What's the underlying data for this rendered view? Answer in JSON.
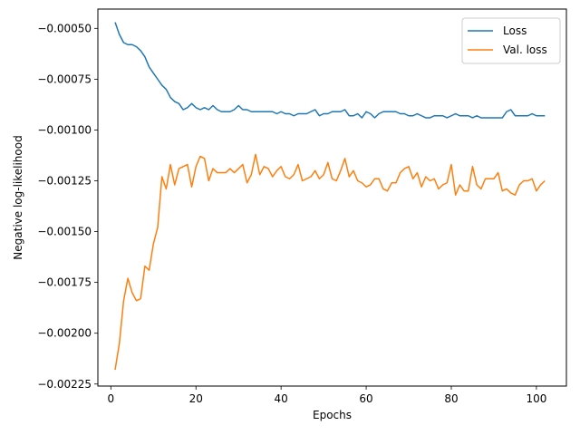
{
  "chart_data": {
    "type": "line",
    "title": "",
    "xlabel": "Epochs",
    "ylabel": "Negative log-likelihood",
    "xlim": [
      -3.05,
      107.05
    ],
    "ylim": [
      -0.00226,
      -0.000405
    ],
    "x_ticks": [
      0,
      20,
      40,
      60,
      80,
      100
    ],
    "x_tick_labels": [
      "0",
      "20",
      "40",
      "60",
      "80",
      "100"
    ],
    "y_ticks": [
      -0.0005,
      -0.00075,
      -0.001,
      -0.00125,
      -0.0015,
      -0.00175,
      -0.002,
      -0.00225
    ],
    "y_tick_labels": [
      "−0.00050",
      "−0.00075",
      "−0.00100",
      "−0.00125",
      "−0.00150",
      "−0.00175",
      "−0.00200",
      "−0.00225"
    ],
    "grid": false,
    "legend_position": "top-right",
    "x": [
      1,
      2,
      3,
      4,
      5,
      6,
      7,
      8,
      9,
      10,
      11,
      12,
      13,
      14,
      15,
      16,
      17,
      18,
      19,
      20,
      21,
      22,
      23,
      24,
      25,
      26,
      27,
      28,
      29,
      30,
      31,
      32,
      33,
      34,
      35,
      36,
      37,
      38,
      39,
      40,
      41,
      42,
      43,
      44,
      45,
      46,
      47,
      48,
      49,
      50,
      51,
      52,
      53,
      54,
      55,
      56,
      57,
      58,
      59,
      60,
      61,
      62,
      63,
      64,
      65,
      66,
      67,
      68,
      69,
      70,
      71,
      72,
      73,
      74,
      75,
      76,
      77,
      78,
      79,
      80,
      81,
      82,
      83,
      84,
      85,
      86,
      87,
      88,
      89,
      90,
      91,
      92,
      93,
      94,
      95,
      96,
      97,
      98,
      99,
      100,
      101,
      102
    ],
    "series": [
      {
        "name": "Loss",
        "color": "#1f77b4",
        "values": [
          -0.00047,
          -0.00053,
          -0.00057,
          -0.00058,
          -0.00058,
          -0.00059,
          -0.00061,
          -0.00064,
          -0.00069,
          -0.00072,
          -0.00075,
          -0.00078,
          -0.0008,
          -0.00084,
          -0.00086,
          -0.00087,
          -0.0009,
          -0.00089,
          -0.00087,
          -0.00089,
          -0.0009,
          -0.00089,
          -0.0009,
          -0.00088,
          -0.0009,
          -0.00091,
          -0.00091,
          -0.00091,
          -0.0009,
          -0.00088,
          -0.0009,
          -0.0009,
          -0.00091,
          -0.00091,
          -0.00091,
          -0.00091,
          -0.00091,
          -0.00091,
          -0.00092,
          -0.00091,
          -0.00092,
          -0.00092,
          -0.00093,
          -0.00092,
          -0.00092,
          -0.00092,
          -0.00091,
          -0.0009,
          -0.00093,
          -0.00092,
          -0.00092,
          -0.00091,
          -0.00091,
          -0.00091,
          -0.0009,
          -0.00093,
          -0.00093,
          -0.00092,
          -0.00094,
          -0.00091,
          -0.00092,
          -0.00094,
          -0.00092,
          -0.00091,
          -0.00091,
          -0.00091,
          -0.00091,
          -0.00092,
          -0.00092,
          -0.00093,
          -0.00093,
          -0.00092,
          -0.00093,
          -0.00094,
          -0.00094,
          -0.00093,
          -0.00093,
          -0.00093,
          -0.00094,
          -0.00093,
          -0.00092,
          -0.00093,
          -0.00093,
          -0.00093,
          -0.00094,
          -0.00093,
          -0.00094,
          -0.00094,
          -0.00094,
          -0.00094,
          -0.00094,
          -0.00094,
          -0.00091,
          -0.0009,
          -0.00093,
          -0.00093,
          -0.00093,
          -0.00093,
          -0.00092,
          -0.00093,
          -0.00093,
          -0.00093
        ]
      },
      {
        "name": "Val. loss",
        "color": "#ff7f0e",
        "values": [
          -0.00218,
          -0.00205,
          -0.00184,
          -0.00173,
          -0.0018,
          -0.00184,
          -0.00183,
          -0.00167,
          -0.00169,
          -0.00156,
          -0.00148,
          -0.00123,
          -0.00129,
          -0.00117,
          -0.00127,
          -0.00119,
          -0.00118,
          -0.00117,
          -0.00128,
          -0.00118,
          -0.00113,
          -0.00114,
          -0.00125,
          -0.00119,
          -0.00121,
          -0.00121,
          -0.00121,
          -0.00119,
          -0.00121,
          -0.00119,
          -0.00117,
          -0.00126,
          -0.00122,
          -0.00112,
          -0.00122,
          -0.00118,
          -0.00119,
          -0.00123,
          -0.0012,
          -0.00118,
          -0.00123,
          -0.00124,
          -0.00122,
          -0.00117,
          -0.00125,
          -0.00124,
          -0.00123,
          -0.0012,
          -0.00124,
          -0.00122,
          -0.00116,
          -0.00124,
          -0.00125,
          -0.0012,
          -0.00114,
          -0.00123,
          -0.0012,
          -0.00125,
          -0.00126,
          -0.00128,
          -0.00127,
          -0.00124,
          -0.00124,
          -0.00129,
          -0.0013,
          -0.00126,
          -0.00126,
          -0.00121,
          -0.00119,
          -0.00118,
          -0.00124,
          -0.00121,
          -0.00128,
          -0.00123,
          -0.00125,
          -0.00124,
          -0.00129,
          -0.00127,
          -0.00126,
          -0.00117,
          -0.00132,
          -0.00127,
          -0.0013,
          -0.0013,
          -0.00118,
          -0.00127,
          -0.00129,
          -0.00124,
          -0.00124,
          -0.00124,
          -0.00121,
          -0.0013,
          -0.00129,
          -0.00131,
          -0.00132,
          -0.00127,
          -0.00125,
          -0.00125,
          -0.00124,
          -0.0013,
          -0.00127,
          -0.00125
        ]
      }
    ]
  }
}
